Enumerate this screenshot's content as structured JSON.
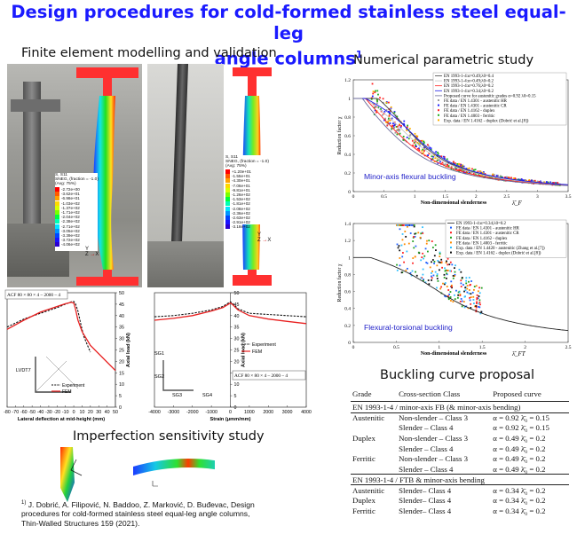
{
  "title": {
    "line1": "Design procedures for cold-formed stainless steel equal-leg",
    "line2": "angle columns",
    "sup": "1"
  },
  "sections": {
    "fe": "Finite element modelling and validation",
    "numerical": "Numerical parametric study",
    "imperfection": "Imperfection sensitivity study",
    "buckling": "Buckling curve proposal"
  },
  "fe_panel": {
    "contour1_head": "S, S11\nSNEG, (fraction = -1.0)\n(Avg: 75%)",
    "contour1_vals": [
      "-2.72e+00",
      "-3.62e+01",
      "-6.98e+01",
      "-1.03e+02",
      "-1.37e+02",
      "-1.71e+02",
      "-2.04e+02",
      "-2.38e+02",
      "-2.71e+02",
      "-3.05e+02",
      "-3.39e+02",
      "-3.72e+02",
      "-4.06e+02"
    ],
    "contour2_head": "S, S11\nSNEG, (fraction = -1.0)\n(Avg: 75%)",
    "contour2_vals": [
      "+1.20e+01",
      "-1.55e+01",
      "-4.30e+01",
      "-7.06e+01",
      "-9.81e+01",
      "-1.26e+02",
      "-1.53e+02",
      "-1.81e+02",
      "-2.08e+02",
      "-2.36e+02",
      "-2.63e+02",
      "-2.91e+02",
      "-3.18e+02"
    ],
    "axes": {
      "y": "Y",
      "x": "X",
      "z": "Z"
    }
  },
  "chart_data": [
    {
      "type": "line",
      "title": "ACF 80 × 80 × 4 – 2000 – 4",
      "xlabel": "Lateral deflection at mid-height (mm)",
      "ylabel": "Axial load (kN)",
      "xlim": [
        -80,
        50
      ],
      "ylim": [
        0,
        50
      ],
      "xticks": [
        -80,
        -70,
        -60,
        -50,
        -40,
        -30,
        -20,
        -10,
        0,
        10,
        20,
        30,
        40,
        50
      ],
      "yticks": [
        0,
        5,
        10,
        15,
        20,
        25,
        30,
        35,
        40,
        45,
        50
      ],
      "legend": [
        "Experiment",
        "FEM"
      ],
      "series": [
        {
          "name": "Experiment",
          "style": "dashed",
          "x": [
            -80,
            -60,
            -40,
            -20,
            -10,
            -3,
            0,
            2,
            5,
            8,
            12,
            20
          ],
          "y": [
            35,
            38.5,
            41,
            43.5,
            45,
            46,
            46.2,
            45.2,
            42,
            37,
            31,
            24
          ]
        },
        {
          "name": "FEM",
          "style": "solid-red",
          "x": [
            -80,
            -60,
            -40,
            -20,
            -10,
            -3,
            0,
            2,
            5,
            10,
            20,
            50
          ],
          "y": [
            34,
            38,
            41.5,
            44,
            45.2,
            45.8,
            45.5,
            43,
            38,
            33,
            27,
            16
          ]
        }
      ],
      "labels": {
        "lvdt": "LVDT7"
      }
    },
    {
      "type": "line",
      "title": "ACF 80 × 80 × 4 – 2000 – 4",
      "xlabel": "Strain (μmm/mm)",
      "ylabel": "Axial load (kN)",
      "xlim": [
        -4000,
        4000
      ],
      "ylim": [
        0,
        50
      ],
      "xticks": [
        -4000,
        -3000,
        -2000,
        -1000,
        0,
        1000,
        2000,
        3000,
        4000
      ],
      "yticks": [
        0,
        5,
        10,
        15,
        20,
        25,
        30,
        35,
        40,
        45,
        50
      ],
      "legend": [
        "Experiment",
        "FEM"
      ],
      "series": [
        {
          "name": "Experiment",
          "style": "dashed",
          "x": [
            -4000,
            -3000,
            -2000,
            -1000,
            -400,
            -100,
            0,
            100,
            400,
            1000,
            2000,
            3000,
            4000
          ],
          "y": [
            39.5,
            40,
            41,
            42.5,
            44,
            45.5,
            46,
            45.5,
            43,
            41,
            40.5,
            40,
            39.5
          ]
        },
        {
          "name": "FEM",
          "style": "solid-red",
          "x": [
            -4000,
            -3000,
            -2000,
            -1000,
            -400,
            -100,
            0,
            100,
            400,
            1000,
            2000,
            3000,
            4000
          ],
          "y": [
            38,
            38.8,
            40,
            42,
            43.5,
            45,
            45.5,
            45,
            42.5,
            40,
            38.5,
            37.5,
            36.5
          ]
        }
      ],
      "gauges": [
        "SG1",
        "SG2",
        "SG3",
        "SG4"
      ]
    },
    {
      "type": "scatter",
      "title": "Minor-axis flexural buckling",
      "xlabel": "Non-dimensional slenderness",
      "xlabel_symbol": "λ̄_F",
      "ylabel": "Reduction factor χ",
      "xlim": [
        0,
        3.5
      ],
      "ylim": [
        0,
        1.2
      ],
      "xticks": [
        0,
        0.5,
        1,
        1.5,
        2,
        2.5,
        3,
        3.5
      ],
      "yticks": [
        0,
        0.2,
        0.4,
        0.6,
        0.8,
        1.0,
        1.2
      ],
      "legend": [
        "EN 1993-1-4:α=0.49;λ0=0.4",
        "EN 1993-1-4:α=0.49;λ0=0.2",
        "EN 1993-1-4:α=0.76;λ0=0.2",
        "EN 1993-1-4:α=0.34;λ0=0.2",
        "Proposed curve for austenitic grades α=0.92 λ0=0.15",
        "FE data / EN 1.4301 - austenitic HR",
        "FE data / EN 1.4301 - austenitic CR",
        "FE data / EN 1.4162 - duplex",
        "FE data / EN 1.4003 - ferritic",
        "Exp. data / EN 1.4162 - duplex (Dobrić et al.[8])"
      ],
      "curves": [
        {
          "name": "α=0.49 λ0=0.4",
          "alpha": 0.49,
          "lambda0": 0.4,
          "color": "#444444"
        },
        {
          "name": "α=0.49 λ0=0.2",
          "alpha": 0.49,
          "lambda0": 0.2,
          "color": "#c8c8c8"
        },
        {
          "name": "α=0.76 λ0=0.2",
          "alpha": 0.76,
          "lambda0": 0.2,
          "color": "#ff2020"
        },
        {
          "name": "α=0.34 λ0=0.2",
          "alpha": 0.34,
          "lambda0": 0.2,
          "color": "#1e1ee6"
        },
        {
          "name": "Proposed α=0.92 λ0=0.15",
          "alpha": 0.92,
          "lambda0": 0.15,
          "color": "#6a6a9a"
        }
      ]
    },
    {
      "type": "scatter",
      "title": "Flexural-torsional buckling",
      "xlabel": "Non-dimensional slenderness",
      "xlabel_symbol": "λ̄_FT",
      "ylabel": "Reduction factor χ",
      "xlim": [
        0,
        2.5
      ],
      "ylim": [
        0,
        1.4
      ],
      "xticks": [
        0,
        0.5,
        1,
        1.5,
        2,
        2.5
      ],
      "yticks": [
        0,
        0.2,
        0.4,
        0.6,
        0.8,
        1,
        1.2,
        1.4
      ],
      "legend": [
        "EN 1993-1-4:α=0.34;λ0=0.2",
        "FE data / EN 1.4301 - austenitic HR",
        "FE data / EN 1.4301 - austenitic CR",
        "FE data / EN 1.4162 - duplex",
        "FE data / EN 1.4003 - ferritic",
        "Exp. data / EN 1.4420 - austenitic (Zhang et al.[7])",
        "Exp. data / EN 1.4162 - duplex (Dobrić et al.[8])"
      ],
      "curves": [
        {
          "name": "α=0.34 λ0=0.2",
          "alpha": 0.34,
          "lambda0": 0.2,
          "color": "#222222"
        }
      ]
    }
  ],
  "buckling_table": {
    "headers": [
      "Grade",
      "Cross-section Class",
      "Proposed curve"
    ],
    "group1_title": "EN 1993-1-4 / minor-axis FB (& minor-axis bending)",
    "group1_rows": [
      [
        "Austenitic",
        "Non-slender – Class 3",
        "α = 0.92",
        "0.15"
      ],
      [
        "",
        "Slender – Class 4",
        "α = 0.92",
        "0.15"
      ],
      [
        "Duplex",
        "Non-slender – Class 3",
        "α = 0.49",
        "0.2"
      ],
      [
        "",
        "Slender – Class 4",
        "α = 0.49",
        "0.2"
      ],
      [
        "Ferritic",
        "Non-slender – Class 3",
        "α = 0.49",
        "0.2"
      ],
      [
        "",
        "Slender – Class 4",
        "α = 0.49",
        "0.2"
      ]
    ],
    "group2_title": "EN 1993-1-4 / FTB & minor-axis bending",
    "group2_rows": [
      [
        "Austenitic",
        "Slender– Class 4",
        "α = 0.34",
        "0.2"
      ],
      [
        "Duplex",
        "Slender– Class 4",
        "α = 0.34",
        "0.2"
      ],
      [
        "Ferritic",
        "Slender– Class 4",
        "α = 0.34",
        "0.2"
      ]
    ],
    "lambda_symbol": "λ̄₀ ="
  },
  "reference": {
    "sup": "1)",
    "line1": "J. Dobrić, A. Filipović, N. Baddoo, Z. Marković, D. Buđevac, Design",
    "line2": "procedures for cold-formed stainless steel equal-leg angle columns,",
    "line3": "Thin-Walled Structures 159 (2021)."
  },
  "colors": {
    "title": "#1a1aff",
    "fem": "#e82020",
    "blue_label": "#1e1ec8"
  }
}
